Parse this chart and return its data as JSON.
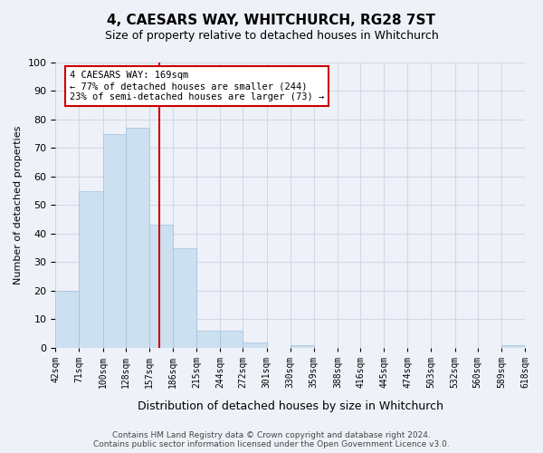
{
  "title": "4, CAESARS WAY, WHITCHURCH, RG28 7ST",
  "subtitle": "Size of property relative to detached houses in Whitchurch",
  "xlabel": "Distribution of detached houses by size in Whitchurch",
  "ylabel": "Number of detached properties",
  "bar_edges": [
    42,
    71,
    100,
    128,
    157,
    186,
    215,
    244,
    272,
    301,
    330,
    359,
    388,
    416,
    445,
    474,
    503,
    532,
    560,
    589,
    618
  ],
  "bar_heights": [
    20,
    55,
    75,
    77,
    43,
    35,
    6,
    6,
    2,
    0,
    1,
    0,
    0,
    0,
    0,
    0,
    0,
    0,
    0,
    1
  ],
  "bar_color": "#cce0f0",
  "bar_edgecolor": "#a0c0e0",
  "property_line_x": 169,
  "annotation_text": "4 CAESARS WAY: 169sqm\n← 77% of detached houses are smaller (244)\n23% of semi-detached houses are larger (73) →",
  "annotation_box_color": "#ffffff",
  "annotation_box_edgecolor": "#cc0000",
  "vline_color": "#cc0000",
  "grid_color": "#d0d8e8",
  "background_color": "#eef2f8",
  "ylim": [
    0,
    100
  ],
  "yticks": [
    0,
    10,
    20,
    30,
    40,
    50,
    60,
    70,
    80,
    90,
    100
  ],
  "footnote": "Contains HM Land Registry data © Crown copyright and database right 2024.\nContains public sector information licensed under the Open Government Licence v3.0."
}
